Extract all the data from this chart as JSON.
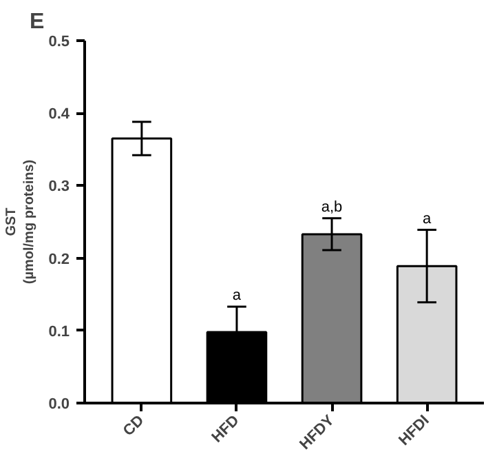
{
  "chart_data": {
    "type": "bar",
    "title": "E",
    "ylabel": "GST\n(µmol/mg proteins)",
    "categories": [
      "CD",
      "HFD",
      "HFDY",
      "HFDI"
    ],
    "values": [
      0.365,
      0.098,
      0.233,
      0.189
    ],
    "colors": [
      "#ffffff",
      "#000000",
      "#808080",
      "#d9d9d9"
    ],
    "errors": [
      0.023,
      0.035,
      0.022,
      0.05
    ],
    "ylim": [
      0,
      0.5
    ],
    "yticks": [
      {
        "value": 0,
        "label": "0.0"
      },
      0.1,
      0.2,
      0.3,
      0.4,
      0.5
    ],
    "grid": false,
    "annotations": [
      {
        "text": "a",
        "x": "HFD",
        "y": 0.133
      },
      {
        "text": "a,b",
        "x": "HFDY",
        "y": 0.255
      },
      {
        "text": "a",
        "x": "HFDI",
        "y": 0.239
      }
    ]
  }
}
